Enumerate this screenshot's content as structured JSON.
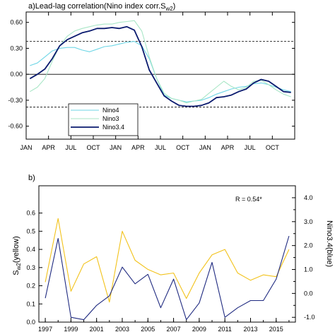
{
  "chart_data": [
    {
      "type": "line",
      "title": "a)Lead-lag correlation(Nino index corr.S",
      "title_sub": "w2",
      "title_tail": ")",
      "x_tick_labels": [
        "JAN",
        "APR",
        "JUL",
        "OCT",
        "JAN",
        "APR",
        "JUL",
        "OCT",
        "JAN",
        "APR",
        "JUL",
        "OCT"
      ],
      "ylim": [
        -0.75,
        0.72
      ],
      "y_ticks": [
        0.6,
        0.3,
        0.0,
        -0.3,
        -0.6
      ],
      "y_tick_labels": [
        "0.60",
        "0.30",
        "0.00",
        "-0.30",
        "-0.60"
      ],
      "reference_lines": [
        {
          "y": 0.0,
          "style": "solid"
        },
        {
          "y": 0.38,
          "style": "dashed"
        },
        {
          "y": -0.38,
          "style": "dashed"
        }
      ],
      "legend_position": "bottom-left",
      "series": [
        {
          "name": "Nino4",
          "color": "#6fd6e6",
          "values": [
            0.1,
            0.13,
            0.2,
            0.27,
            0.3,
            0.31,
            0.31,
            0.28,
            0.26,
            0.29,
            0.32,
            0.33,
            0.35,
            0.37,
            0.38,
            0.33,
            0.18,
            -0.05,
            -0.24,
            -0.28,
            -0.3,
            -0.32,
            -0.31,
            -0.3,
            -0.27,
            -0.23,
            -0.2,
            -0.17,
            -0.15,
            -0.14,
            -0.11,
            -0.1,
            -0.12,
            -0.15,
            -0.18,
            -0.2
          ]
        },
        {
          "name": "Nino3",
          "color": "#a8e6c6",
          "values": [
            -0.2,
            -0.15,
            -0.05,
            0.15,
            0.33,
            0.44,
            0.5,
            0.53,
            0.55,
            0.57,
            0.58,
            0.58,
            0.6,
            0.61,
            0.62,
            0.5,
            0.2,
            -0.05,
            -0.22,
            -0.28,
            -0.3,
            -0.33,
            -0.31,
            -0.29,
            -0.22,
            -0.15,
            -0.08,
            -0.14,
            -0.18,
            -0.15,
            -0.08,
            -0.07,
            -0.12,
            -0.18,
            -0.23,
            -0.26
          ]
        },
        {
          "name": "Nino3.4",
          "color": "#0a1a6e",
          "values": [
            -0.05,
            0.0,
            0.06,
            0.18,
            0.33,
            0.4,
            0.44,
            0.48,
            0.5,
            0.53,
            0.53,
            0.54,
            0.53,
            0.55,
            0.51,
            0.32,
            0.05,
            -0.1,
            -0.25,
            -0.31,
            -0.36,
            -0.37,
            -0.37,
            -0.36,
            -0.33,
            -0.27,
            -0.26,
            -0.24,
            -0.2,
            -0.17,
            -0.1,
            -0.06,
            -0.08,
            -0.14,
            -0.2,
            -0.21
          ]
        }
      ]
    },
    {
      "type": "line",
      "title": "b)",
      "annotation": "R = 0.54*",
      "x": [
        1997,
        1998,
        1999,
        2000,
        2001,
        2002,
        2003,
        2004,
        2005,
        2006,
        2007,
        2008,
        2009,
        2010,
        2011,
        2012,
        2013,
        2014,
        2015,
        2016
      ],
      "x_tick_values": [
        1997,
        1999,
        2001,
        2003,
        2005,
        2007,
        2009,
        2011,
        2013,
        2015
      ],
      "x_tick_labels": [
        "1997",
        "1999",
        "2001",
        "2003",
        "2005",
        "2007",
        "2009",
        "2011",
        "2013",
        "2015"
      ],
      "xlim": [
        1996.5,
        2016.5
      ],
      "ylabel_left": "S",
      "ylabel_left_sub": "w2",
      "ylabel_left_tail": "(yellow)",
      "ylabel_right": "Nino3.4(blue)",
      "ylim_left": [
        0.0,
        0.75
      ],
      "y_ticks_left": [
        0.0,
        0.1,
        0.2,
        0.3,
        0.4,
        0.5,
        0.6
      ],
      "y_tick_labels_left": [
        "0.0",
        "0.1",
        "0.2",
        "0.3",
        "0.4",
        "0.5",
        "0.6"
      ],
      "ylim_right": [
        -1.2,
        4.5
      ],
      "y_ticks_right": [
        -1.0,
        -0.5,
        0.0,
        0.5,
        1.0,
        1.5,
        2.0,
        2.5,
        3.0,
        3.5,
        4.0
      ],
      "y_tick_labels_right": [
        "-1.0",
        "",
        "0.0",
        "",
        "1.0",
        "",
        "2.0",
        "",
        "3.0",
        "",
        "4.0"
      ],
      "series": [
        {
          "color": "#f2c21a",
          "axis": "left",
          "values": [
            0.22,
            0.57,
            0.17,
            0.32,
            0.36,
            0.11,
            0.5,
            0.34,
            0.29,
            0.26,
            0.27,
            0.13,
            0.27,
            0.37,
            0.4,
            0.27,
            0.23,
            0.26,
            0.25,
            0.4
          ]
        },
        {
          "color": "#1f2a80",
          "axis": "right",
          "values": [
            -0.2,
            2.3,
            -1.0,
            -1.1,
            -0.5,
            -0.1,
            1.1,
            0.4,
            0.8,
            -0.6,
            0.6,
            -1.1,
            -0.4,
            1.3,
            -1.0,
            -0.6,
            -0.3,
            -0.3,
            0.6,
            2.4
          ]
        }
      ]
    }
  ]
}
